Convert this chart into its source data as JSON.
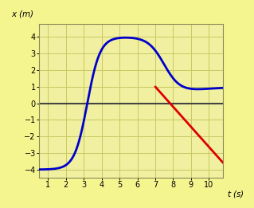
{
  "background_color": "#f5f590",
  "plot_bg_color": "#f0f0a0",
  "grid_color": "#c8c864",
  "xlim": [
    0.5,
    10.8
  ],
  "ylim": [
    -4.5,
    4.8
  ],
  "xticks": [
    1,
    2,
    3,
    4,
    5,
    6,
    7,
    8,
    9,
    10
  ],
  "yticks": [
    -4,
    -3,
    -2,
    -1,
    0,
    1,
    2,
    3,
    4
  ],
  "curve_color": "#0000cc",
  "curve_lw": 2.0,
  "tangent_color": "#dd0000",
  "tangent_lw": 2.0,
  "tangent_x1": 7.0,
  "tangent_y1": 1.0,
  "tangent_x2": 10.8,
  "tangent_y2": -3.6,
  "zero_line_color": "#444444",
  "zero_line_lw": 1.5,
  "xlabel": "t (s)",
  "ylabel": "x (m)"
}
